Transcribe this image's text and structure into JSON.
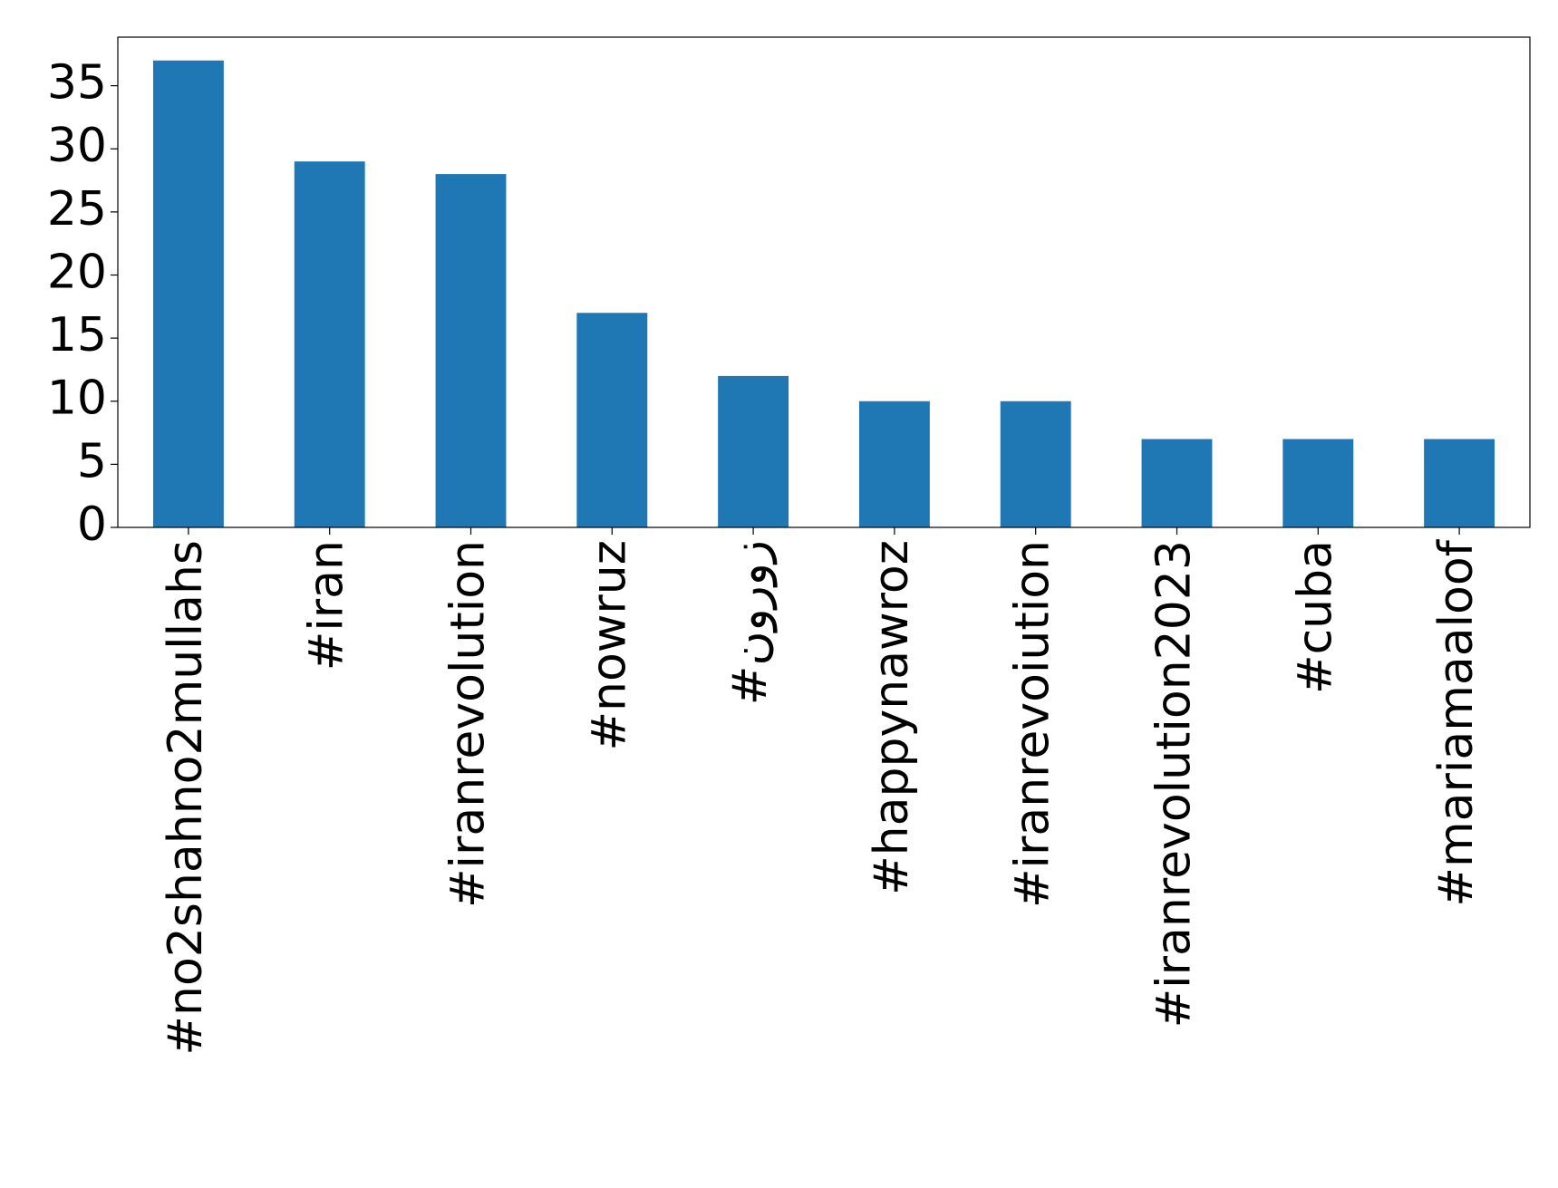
{
  "chart_data": {
    "type": "bar",
    "categories": [
      "#no2shahno2mullahs",
      "#iran",
      "#iranrevolution",
      "#nowruz",
      "#نوروز",
      "#happynawroz",
      "#iranrevoiution",
      "#iranrevolution2023",
      "#cuba",
      "#mariamaaloof"
    ],
    "values": [
      37,
      29,
      28,
      17,
      12,
      10,
      10,
      7,
      7,
      7
    ],
    "color": "#1f77b4",
    "ylim": [
      0,
      38.85
    ],
    "yticks": [
      0,
      5,
      10,
      15,
      20,
      25,
      30,
      35
    ],
    "grid": false
  }
}
